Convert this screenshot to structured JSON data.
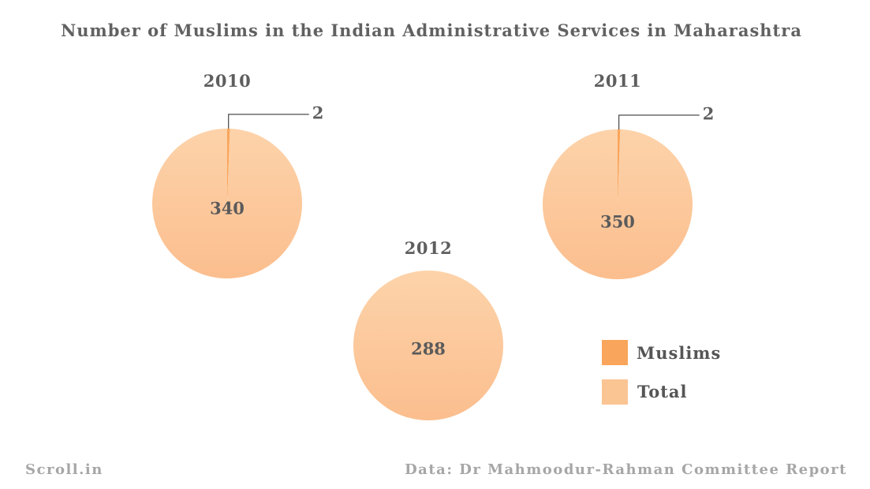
{
  "title": "Number of Muslims in the Indian Administrative Services in Maharashtra",
  "footer": {
    "left": "Scroll.in",
    "right": "Data: Dr Mahmoodur-Rahman Committee Report"
  },
  "colors": {
    "muslims": "#F9A55B",
    "total": "#FBC493",
    "total_light": "#FCD1A8",
    "leader_line": "#222222"
  },
  "legend": [
    {
      "label": "Muslims",
      "color": "#F9A55B"
    },
    {
      "label": "Total",
      "color": "#FBC493"
    }
  ],
  "chart_data": [
    {
      "type": "pie",
      "title": "2010",
      "slices": [
        {
          "name": "Muslims",
          "value": 2,
          "label": "2"
        },
        {
          "name": "Total",
          "value": 340,
          "label": "340"
        }
      ]
    },
    {
      "type": "pie",
      "title": "2011",
      "slices": [
        {
          "name": "Muslims",
          "value": 2,
          "label": "2"
        },
        {
          "name": "Total",
          "value": 350,
          "label": "350"
        }
      ]
    },
    {
      "type": "pie",
      "title": "2012",
      "slices": [
        {
          "name": "Total",
          "value": 288,
          "label": "288"
        }
      ]
    }
  ]
}
